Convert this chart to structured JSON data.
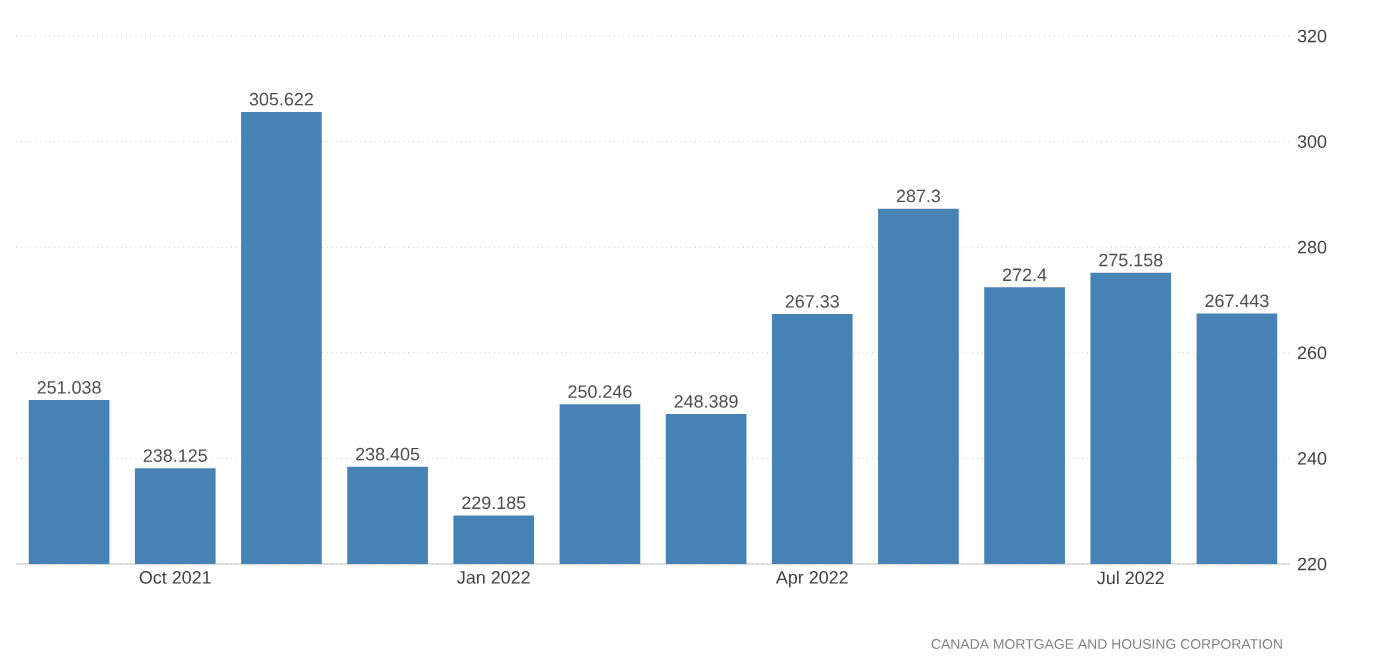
{
  "chart_data": {
    "type": "bar",
    "categories": [
      null,
      "Oct 2021",
      null,
      null,
      "Jan 2022",
      null,
      null,
      "Apr 2022",
      null,
      null,
      "Jul 2022",
      null
    ],
    "values": [
      251.038,
      238.125,
      305.622,
      238.405,
      229.185,
      250.246,
      248.389,
      267.33,
      287.3,
      272.4,
      275.158,
      267.443
    ],
    "color": "#4682b4",
    "ylim": [
      220,
      320
    ],
    "yticks": [
      220,
      240,
      260,
      280,
      300,
      320
    ],
    "grid": "y",
    "data_labels": true,
    "annotations": [
      "CANADA MORTGAGE AND HOUSING CORPORATION"
    ]
  }
}
